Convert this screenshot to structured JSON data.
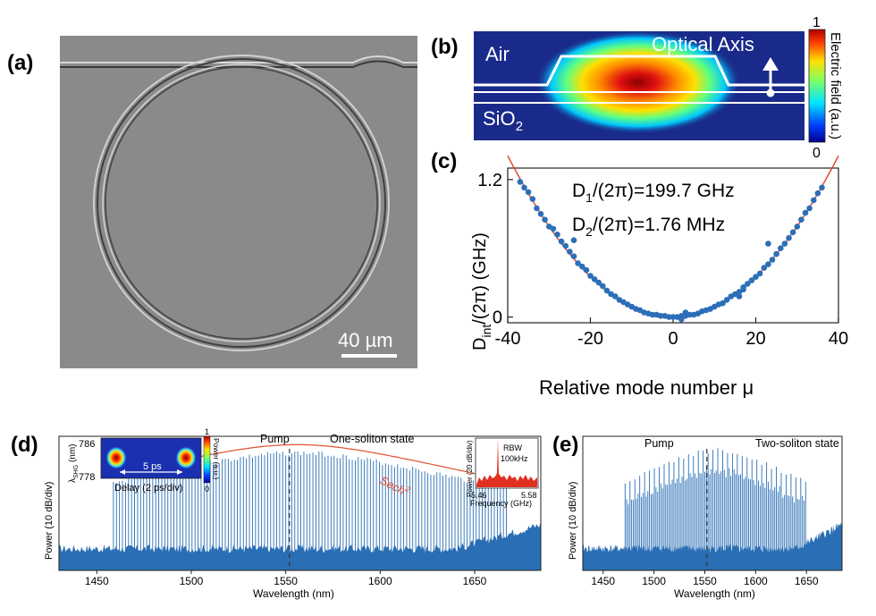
{
  "panels": {
    "a": {
      "label": "(a)",
      "scalebar": "40 µm",
      "colors": {
        "background": "#8a8a8a"
      }
    },
    "b": {
      "label": "(b)",
      "air": "Air",
      "sio2": "SiO",
      "sio2_sub": "2",
      "optical_axis": "Optical Axis",
      "colorbar_label": "Electric field (a.u.)",
      "colorbar_max": "1",
      "colorbar_min": "0",
      "colors": {
        "background": "#1a2a8a",
        "hot": "#c81e1e"
      }
    }
  },
  "chart_data": [
    {
      "panel": "c",
      "label": "(c)",
      "type": "scatter",
      "xlabel": "Relative mode number μ",
      "ylabel_main": "D",
      "ylabel_sub": "int",
      "ylabel_rest": "/(2π) (GHz)",
      "xlim": [
        -40,
        40
      ],
      "ylim": [
        -0.05,
        1.3
      ],
      "xticks": [
        "-40",
        "-20",
        "0",
        "20",
        "40"
      ],
      "yticks": [
        "0",
        "1.2"
      ],
      "annotation_d1_main": "D",
      "annotation_d1_sub": "1",
      "annotation_d1_rest": "/(2π)=199.7 GHz",
      "annotation_d2_main": "D",
      "annotation_d2_sub": "2",
      "annotation_d2_rest": "/(2π)=1.76 MHz",
      "fit_coefficient_ghz": 0.00088,
      "x": [
        -37,
        -36,
        -35,
        -34,
        -33,
        -32,
        -31,
        -30,
        -29,
        -28,
        -27,
        -26,
        -25,
        -24,
        -23,
        -22,
        -21,
        -20,
        -19,
        -18,
        -17,
        -16,
        -15,
        -14,
        -13,
        -12,
        -11,
        -10,
        -9,
        -8,
        -7,
        -6,
        -5,
        -4,
        -3,
        -2,
        -1,
        0,
        1,
        2,
        3,
        4,
        5,
        6,
        7,
        8,
        9,
        10,
        11,
        12,
        13,
        14,
        15,
        16,
        17,
        18,
        19,
        20,
        21,
        22,
        23,
        24,
        25,
        26,
        27,
        28,
        29,
        30,
        31,
        32,
        33,
        34,
        35,
        36,
        -24,
        23,
        2,
        3,
        16,
        17
      ],
      "y": [
        1.18,
        1.13,
        1.09,
        1.03,
        0.95,
        0.9,
        0.85,
        0.79,
        0.77,
        0.72,
        0.66,
        0.62,
        0.57,
        0.53,
        0.47,
        0.44,
        0.41,
        0.36,
        0.33,
        0.3,
        0.27,
        0.23,
        0.2,
        0.18,
        0.15,
        0.13,
        0.11,
        0.09,
        0.07,
        0.06,
        0.04,
        0.03,
        0.02,
        0.02,
        0.01,
        0.01,
        0.0,
        0.0,
        0.0,
        0.01,
        0.01,
        0.02,
        0.02,
        0.03,
        0.05,
        0.06,
        0.07,
        0.09,
        0.11,
        0.12,
        0.15,
        0.18,
        0.2,
        0.22,
        0.26,
        0.29,
        0.32,
        0.35,
        0.38,
        0.43,
        0.46,
        0.5,
        0.55,
        0.6,
        0.64,
        0.69,
        0.74,
        0.79,
        0.85,
        0.91,
        0.95,
        1.02,
        1.08,
        1.13,
        0.67,
        0.64,
        -0.02,
        0.04,
        0.18,
        0.24
      ]
    },
    {
      "panel": "d",
      "label": "(d)",
      "type": "spectrum",
      "xlabel": "Wavelength (nm)",
      "ylabel": "Power (10 dB/div)",
      "xlim": [
        1430,
        1685
      ],
      "xticks": [
        "1450",
        "1500",
        "1550",
        "1600",
        "1650"
      ],
      "pump_label": "Pump",
      "state_label": "One-soliton state",
      "envelope_label": "Sech",
      "envelope_exp": "2",
      "pump_nm": 1552,
      "center_nm": 1556,
      "fwhm_nm": 62,
      "line_spacing_nm": 1.6,
      "noise_floor_db": -62,
      "peak_db": 0,
      "inset_left": {
        "ylabel_main": "λ",
        "ylabel_sub": "SHG",
        "ylabel_rest": " (nm)",
        "yticks": [
          "786",
          "778"
        ],
        "xlabel": "Delay (2 ps/div)",
        "separation": "5 ps",
        "colorbar_label": "Power (a.u.)",
        "colorbar_max": "1",
        "colorbar_min": "0"
      },
      "inset_right": {
        "ylabel": "Power (20 dB/div)",
        "xlabel": "Frequency (GHz)",
        "xticks": [
          "5.46",
          "5.58"
        ],
        "rbw": "RBW",
        "rbw_value": "100kHz"
      }
    },
    {
      "panel": "e",
      "label": "(e)",
      "type": "spectrum",
      "xlabel": "Wavelength (nm)",
      "ylabel": "Power (10 dB/div)",
      "xlim": [
        1430,
        1685
      ],
      "xticks": [
        "1450",
        "1500",
        "1550",
        "1600",
        "1650"
      ],
      "pump_label": "Pump",
      "state_label": "Two-soliton state",
      "pump_nm": 1552,
      "center_nm": 1560,
      "fwhm_nm": 55,
      "line_spacing_nm": 1.6,
      "modulation_period_lines": 3
    }
  ]
}
